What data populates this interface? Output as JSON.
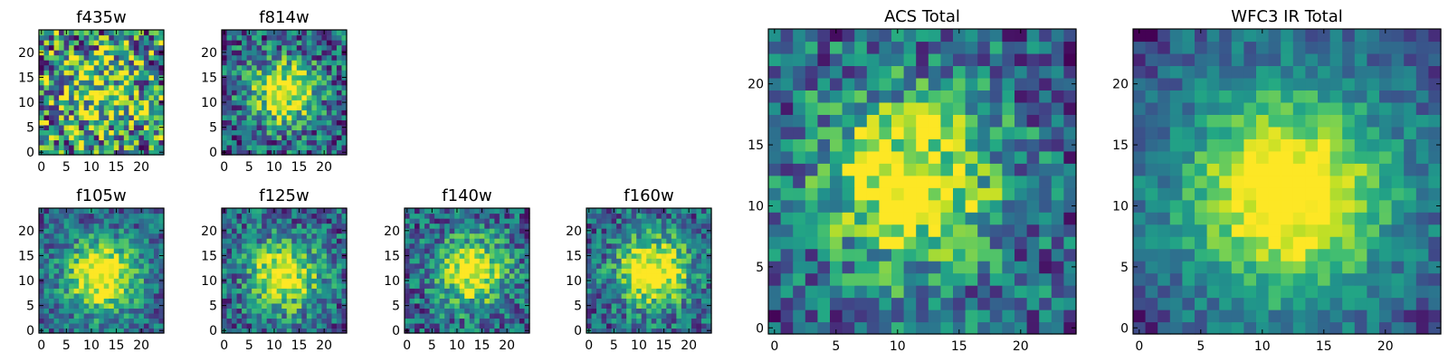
{
  "chart_data": [
    {
      "type": "heatmap",
      "title": "f435w",
      "xticks": [
        0,
        5,
        10,
        15,
        20
      ],
      "yticks": [
        0,
        5,
        10,
        15,
        20
      ],
      "xlim": [
        0,
        24
      ],
      "ylim": [
        0,
        24
      ],
      "grid": false,
      "colormap": "viridis",
      "pattern": "noise",
      "center": [
        12,
        12
      ],
      "sigma": 6.0,
      "peak_strength": 0.35,
      "noise": 0.55,
      "seed": 11,
      "low_corners": false
    },
    {
      "type": "heatmap",
      "title": "f814w",
      "xticks": [
        0,
        5,
        10,
        15,
        20
      ],
      "yticks": [
        0,
        5,
        10,
        15,
        20
      ],
      "xlim": [
        0,
        24
      ],
      "ylim": [
        0,
        24
      ],
      "grid": false,
      "colormap": "viridis",
      "pattern": "blob",
      "center": [
        12,
        12
      ],
      "sigma": 4.5,
      "peak_strength": 0.75,
      "noise": 0.35,
      "seed": 23,
      "low_corners": false
    },
    {
      "type": "heatmap",
      "title": "f105w",
      "xticks": [
        0,
        5,
        10,
        15,
        20
      ],
      "yticks": [
        0,
        5,
        10,
        15,
        20
      ],
      "xlim": [
        0,
        24
      ],
      "ylim": [
        0,
        24
      ],
      "grid": false,
      "colormap": "viridis",
      "pattern": "blob",
      "center": [
        12,
        11
      ],
      "sigma": 5.0,
      "peak_strength": 0.8,
      "noise": 0.25,
      "seed": 37,
      "low_corners": false
    },
    {
      "type": "heatmap",
      "title": "f125w",
      "xticks": [
        0,
        5,
        10,
        15,
        20
      ],
      "yticks": [
        0,
        5,
        10,
        15,
        20
      ],
      "xlim": [
        0,
        24
      ],
      "ylim": [
        0,
        24
      ],
      "grid": false,
      "colormap": "viridis",
      "pattern": "blob",
      "center": [
        12,
        11
      ],
      "sigma": 4.8,
      "peak_strength": 0.75,
      "noise": 0.3,
      "seed": 41,
      "low_corners": false
    },
    {
      "type": "heatmap",
      "title": "f140w",
      "xticks": [
        0,
        5,
        10,
        15,
        20
      ],
      "yticks": [
        0,
        5,
        10,
        15,
        20
      ],
      "xlim": [
        0,
        24
      ],
      "ylim": [
        0,
        24
      ],
      "grid": false,
      "colormap": "viridis",
      "pattern": "blob",
      "center": [
        13,
        12
      ],
      "sigma": 4.8,
      "peak_strength": 0.75,
      "noise": 0.3,
      "seed": 53,
      "low_corners": false
    },
    {
      "type": "heatmap",
      "title": "f160w",
      "xticks": [
        0,
        5,
        10,
        15,
        20
      ],
      "yticks": [
        0,
        5,
        10,
        15,
        20
      ],
      "xlim": [
        0,
        24
      ],
      "ylim": [
        0,
        24
      ],
      "grid": false,
      "colormap": "viridis",
      "pattern": "blob",
      "center": [
        13,
        12
      ],
      "sigma": 5.0,
      "peak_strength": 0.8,
      "noise": 0.28,
      "seed": 67,
      "low_corners": false
    },
    {
      "type": "heatmap",
      "title": "ACS Total",
      "xticks": [
        0,
        5,
        10,
        15,
        20
      ],
      "yticks": [
        0,
        5,
        10,
        15,
        20
      ],
      "xlim": [
        0,
        24
      ],
      "ylim": [
        0,
        24
      ],
      "grid": false,
      "colormap": "viridis",
      "pattern": "blob",
      "center": [
        11,
        12
      ],
      "sigma": 5.2,
      "peak_strength": 0.7,
      "noise": 0.32,
      "seed": 71,
      "low_corners": false
    },
    {
      "type": "heatmap",
      "title": "WFC3 IR Total",
      "xticks": [
        0,
        5,
        10,
        15,
        20
      ],
      "yticks": [
        0,
        5,
        10,
        15,
        20
      ],
      "xlim": [
        0,
        24
      ],
      "ylim": [
        0,
        24
      ],
      "grid": false,
      "colormap": "viridis",
      "pattern": "blob",
      "center": [
        12,
        11
      ],
      "sigma": 5.5,
      "peak_strength": 0.85,
      "noise": 0.16,
      "seed": 89,
      "low_corners": true
    }
  ]
}
